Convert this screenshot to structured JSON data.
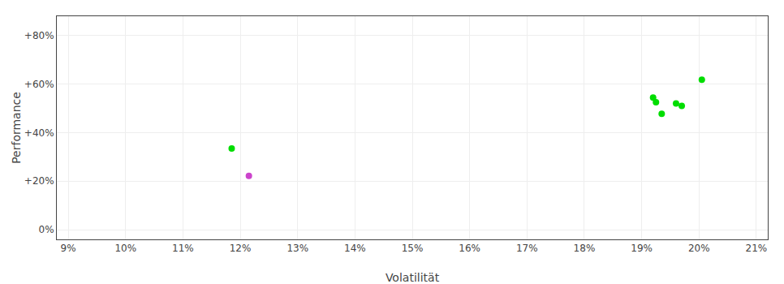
{
  "chart_data": {
    "type": "scatter",
    "xlabel": "Volatilität",
    "ylabel": "Performance",
    "xlim": [
      0.088,
      0.212
    ],
    "ylim": [
      -0.04,
      0.88
    ],
    "xticks": [
      {
        "value": 0.09,
        "label": "9%"
      },
      {
        "value": 0.1,
        "label": "10%"
      },
      {
        "value": 0.11,
        "label": "11%"
      },
      {
        "value": 0.12,
        "label": "12%"
      },
      {
        "value": 0.13,
        "label": "13%"
      },
      {
        "value": 0.14,
        "label": "14%"
      },
      {
        "value": 0.15,
        "label": "15%"
      },
      {
        "value": 0.16,
        "label": "16%"
      },
      {
        "value": 0.17,
        "label": "17%"
      },
      {
        "value": 0.18,
        "label": "18%"
      },
      {
        "value": 0.19,
        "label": "19%"
      },
      {
        "value": 0.2,
        "label": "20%"
      },
      {
        "value": 0.21,
        "label": "21%"
      }
    ],
    "yticks": [
      {
        "value": 0.0,
        "label": "0%"
      },
      {
        "value": 0.2,
        "label": "+20%"
      },
      {
        "value": 0.4,
        "label": "+40%"
      },
      {
        "value": 0.6,
        "label": "+60%"
      },
      {
        "value": 0.8,
        "label": "+80%"
      }
    ],
    "grid": true,
    "marker": "circle",
    "series": [
      {
        "color": "#00dd00",
        "x": [
          0.1185,
          0.192,
          0.1925,
          0.196,
          0.197,
          0.1935,
          0.2005
        ],
        "values": [
          0.335,
          0.545,
          0.525,
          0.52,
          0.51,
          0.478,
          0.618
        ]
      },
      {
        "color": "#cc44cc",
        "x": [
          0.1215
        ],
        "values": [
          0.222
        ]
      }
    ]
  }
}
